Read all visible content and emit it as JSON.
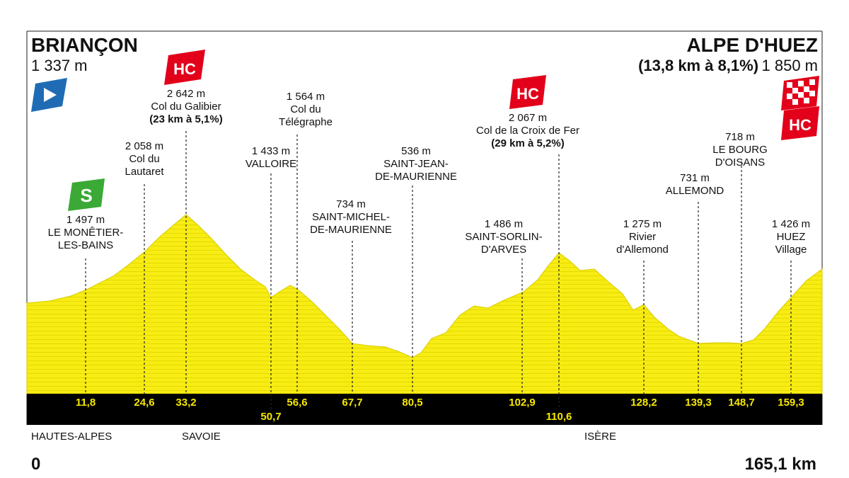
{
  "start": {
    "name": "BRIANÇON",
    "altitude": "1 337 m"
  },
  "finish": {
    "name": "ALPE D'HUEZ",
    "climb": "(13,8 km à 8,1%)",
    "altitude": "1 850 m"
  },
  "badges": {
    "climb_category": "HC",
    "sprint": "S"
  },
  "colors": {
    "profile_fill": "#f7ec13",
    "profile_line": "#e3d600",
    "band": "#000000",
    "band_text": "#f6e800",
    "hc_red": "#e2001a",
    "start_blue": "#1f6cb5",
    "sprint_green": "#3aa935"
  },
  "points": [
    {
      "id": "monetier",
      "alt": "1 497 m",
      "name": [
        "LE MONÊTIER-",
        "LES-BAINS"
      ],
      "note": "",
      "km": "11,8",
      "badge": "sprint"
    },
    {
      "id": "lautaret",
      "alt": "2 058 m",
      "name": [
        "Col du",
        "Lautaret"
      ],
      "note": "",
      "km": "24,6",
      "badge": ""
    },
    {
      "id": "galibier",
      "alt": "2 642 m",
      "name": [
        "Col du Galibier"
      ],
      "note": "(23 km à 5,1%)",
      "km": "33,2",
      "badge": "hc"
    },
    {
      "id": "valloire",
      "alt": "1 433 m",
      "name": [
        "VALLOIRE"
      ],
      "note": "",
      "km": "50,7",
      "badge": ""
    },
    {
      "id": "telegraphe",
      "alt": "1 564 m",
      "name": [
        "Col du",
        "Télégraphe"
      ],
      "note": "",
      "km": "56,6",
      "badge": ""
    },
    {
      "id": "stmichel",
      "alt": "734 m",
      "name": [
        "SAINT-MICHEL-",
        "DE-MAURIENNE"
      ],
      "note": "",
      "km": "67,7",
      "badge": ""
    },
    {
      "id": "stjean",
      "alt": "536 m",
      "name": [
        "SAINT-JEAN-",
        "DE-MAURIENNE"
      ],
      "note": "",
      "km": "80,5",
      "badge": ""
    },
    {
      "id": "stsorlin",
      "alt": "1 486 m",
      "name": [
        "SAINT-SORLIN-",
        "D'ARVES"
      ],
      "note": "",
      "km": "102,9",
      "badge": ""
    },
    {
      "id": "croixdefer",
      "alt": "2 067 m",
      "name": [
        "Col de la Croix de Fer"
      ],
      "note": "(29 km à 5,2%)",
      "km": "110,6",
      "badge": "hc"
    },
    {
      "id": "rivier",
      "alt": "1 275 m",
      "name": [
        "Rivier",
        "d'Allemond"
      ],
      "note": "",
      "km": "128,2",
      "badge": ""
    },
    {
      "id": "allemond",
      "alt": "731 m",
      "name": [
        "ALLEMOND"
      ],
      "note": "",
      "km": "139,3",
      "badge": ""
    },
    {
      "id": "bourg",
      "alt": "718 m",
      "name": [
        "LE BOURG",
        "D'OISANS"
      ],
      "note": "",
      "km": "148,7",
      "badge": ""
    },
    {
      "id": "huez",
      "alt": "1 426 m",
      "name": [
        "HUEZ",
        "Village"
      ],
      "note": "",
      "km": "159,3",
      "badge": ""
    }
  ],
  "regions": [
    "HAUTES-ALPES",
    "SAVOIE",
    "ISÈRE"
  ],
  "distance": {
    "start": "0",
    "end": "165,1 km"
  }
}
